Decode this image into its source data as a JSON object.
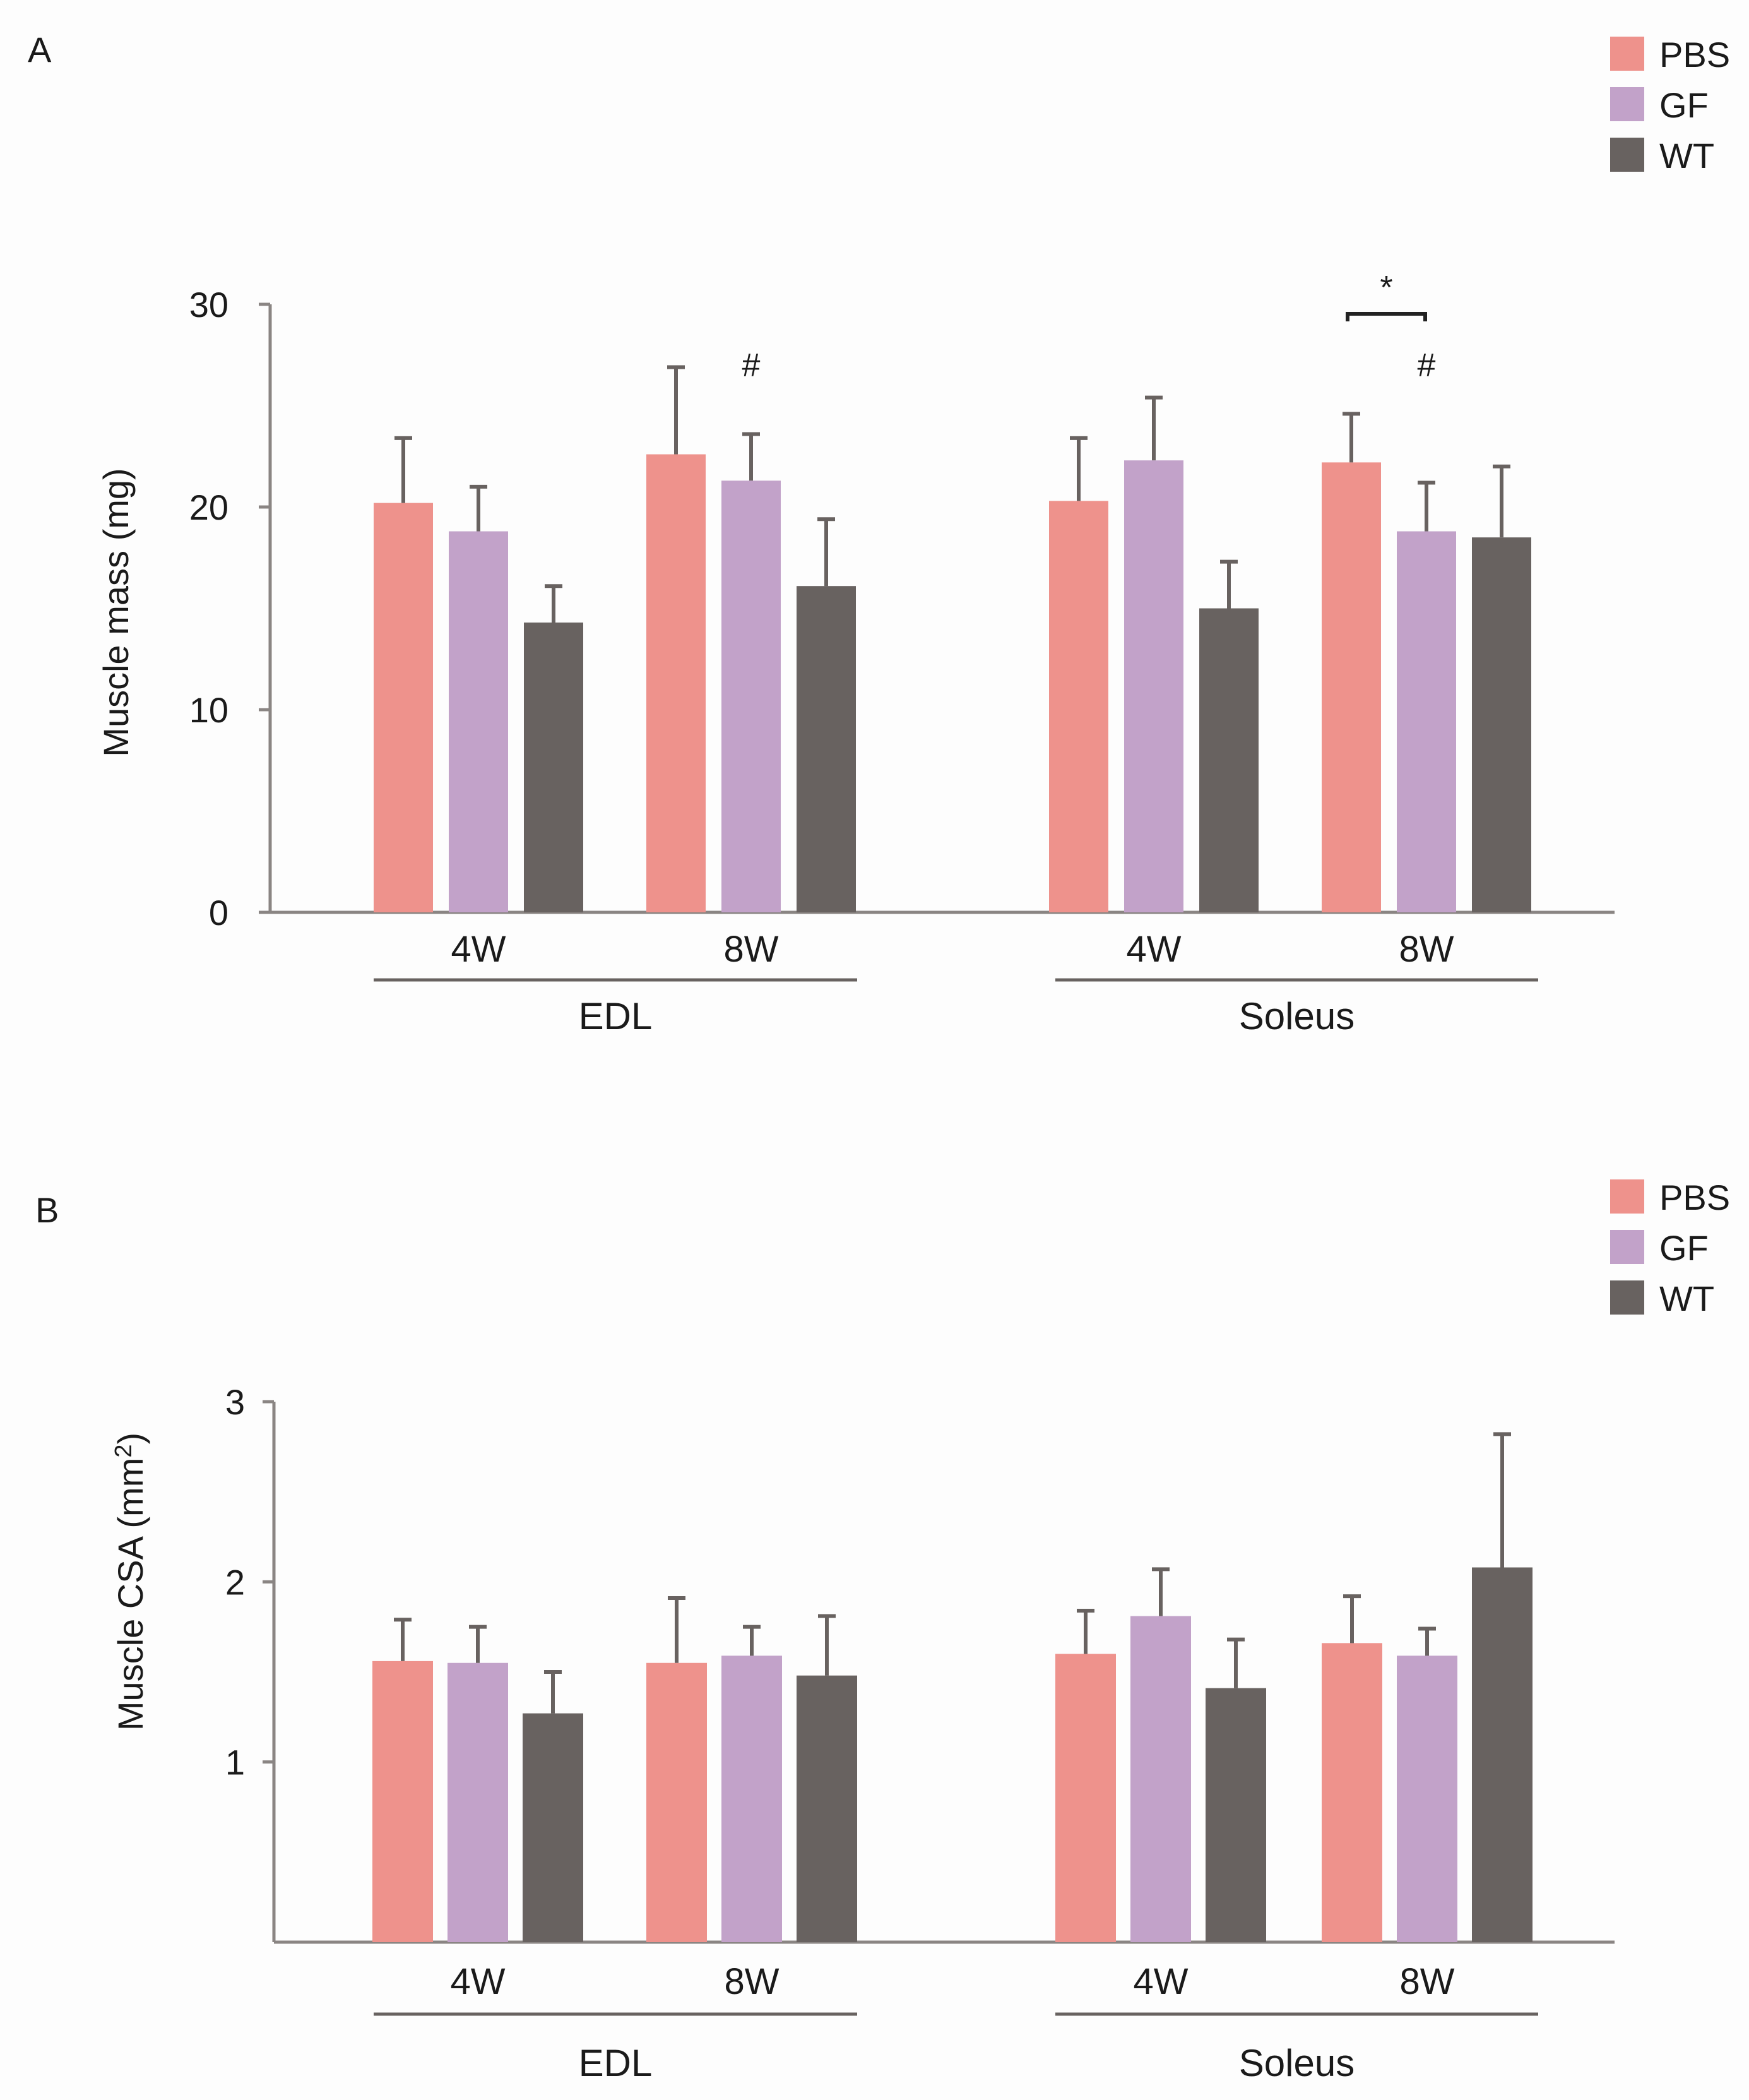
{
  "colors": {
    "PBS": "#ee928c",
    "GF": "#c2a2c9",
    "WT": "#686260",
    "axis": "#8a8583",
    "bracket": "#222222"
  },
  "chart_data": [
    {
      "type": "bar",
      "panel": "A",
      "ylabel": "Muscle mass (mg)",
      "ylim": [
        0,
        30
      ],
      "yticks": [
        "0",
        "10",
        "20",
        "30"
      ],
      "groups": [
        {
          "label": "EDL",
          "timepoints": [
            "4W",
            "8W"
          ]
        },
        {
          "label": "Soleus",
          "timepoints": [
            "4W",
            "8W"
          ]
        }
      ],
      "categories": [
        "EDL 4W",
        "EDL 8W",
        "Soleus 4W",
        "Soleus 8W"
      ],
      "category_labels": [
        "4W",
        "8W",
        "4W",
        "8W"
      ],
      "legend": [
        "PBS",
        "GF",
        "WT"
      ],
      "series": [
        {
          "name": "PBS",
          "values": [
            20.2,
            22.6,
            20.3,
            22.2
          ],
          "errors": [
            3.2,
            4.3,
            3.1,
            2.4
          ]
        },
        {
          "name": "GF",
          "values": [
            18.8,
            21.3,
            22.3,
            18.8
          ],
          "errors": [
            2.2,
            2.3,
            3.1,
            2.4
          ]
        },
        {
          "name": "WT",
          "values": [
            14.3,
            16.1,
            15.0,
            18.5
          ],
          "errors": [
            1.8,
            3.3,
            2.3,
            3.5
          ]
        }
      ],
      "annotations": [
        {
          "text": "#",
          "category": "EDL 8W",
          "series": "GF"
        },
        {
          "text": "#",
          "category": "Soleus 8W",
          "series": "GF"
        },
        {
          "text": "*",
          "category": "Soleus 8W",
          "between": [
            "PBS",
            "GF"
          ],
          "bracket": true
        }
      ]
    },
    {
      "type": "bar",
      "panel": "B",
      "ylabel_main": "Muscle CSA (mm",
      "ylabel_sup": "2",
      "ylabel_end": ")",
      "ylim": [
        0,
        3
      ],
      "yticks": [
        "1",
        "2",
        "3"
      ],
      "groups": [
        {
          "label": "EDL",
          "timepoints": [
            "4W",
            "8W"
          ]
        },
        {
          "label": "Soleus",
          "timepoints": [
            "4W",
            "8W"
          ]
        }
      ],
      "categories": [
        "EDL 4W",
        "EDL 8W",
        "Soleus 4W",
        "Soleus 8W"
      ],
      "category_labels": [
        "4W",
        "8W",
        "4W",
        "8W"
      ],
      "legend": [
        "PBS",
        "GF",
        "WT"
      ],
      "series": [
        {
          "name": "PBS",
          "values": [
            1.56,
            1.55,
            1.6,
            1.66
          ],
          "errors": [
            0.23,
            0.36,
            0.24,
            0.26
          ]
        },
        {
          "name": "GF",
          "values": [
            1.55,
            1.59,
            1.81,
            1.59
          ],
          "errors": [
            0.2,
            0.16,
            0.26,
            0.15
          ]
        },
        {
          "name": "WT",
          "values": [
            1.27,
            1.48,
            1.41,
            2.08
          ],
          "errors": [
            0.23,
            0.33,
            0.27,
            0.74
          ]
        }
      ],
      "annotations": []
    }
  ]
}
